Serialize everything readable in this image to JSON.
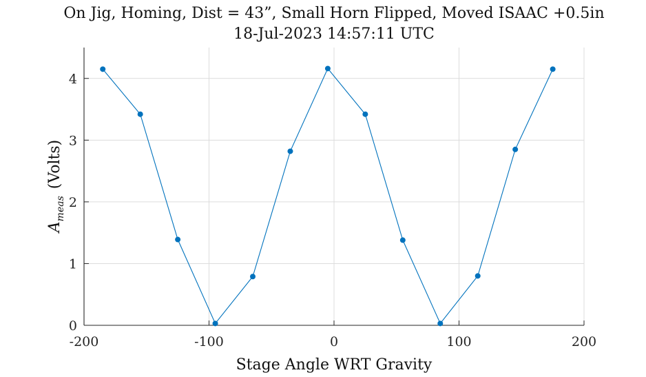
{
  "chart_data": {
    "type": "line",
    "title": "On Jig, Homing, Dist = 43”, Small Horn Flipped, Moved ISAAC +0.5in",
    "subtitle": "18-Jul-2023 14:57:11 UTC",
    "xlabel": "Stage Angle WRT Gravity",
    "ylabel_main": "A",
    "ylabel_sub": "meas",
    "ylabel_units": "(Volts)",
    "xlim": [
      -200,
      200
    ],
    "ylim": [
      0,
      4.5
    ],
    "xticks": [
      -200,
      -100,
      0,
      100,
      200
    ],
    "xtick_labels": [
      "-200",
      "-100",
      "0",
      "100",
      "200"
    ],
    "yticks": [
      0,
      1,
      2,
      3,
      4
    ],
    "ytick_labels": [
      "0",
      "1",
      "2",
      "3",
      "4"
    ],
    "grid": true,
    "color": "#0072BD",
    "series": [
      {
        "x": [
          -185,
          -155,
          -125,
          -95,
          -65,
          -35,
          -5,
          25,
          55,
          85,
          115,
          145,
          175
        ],
        "y": [
          4.15,
          3.42,
          1.39,
          0.03,
          0.79,
          2.82,
          4.16,
          3.42,
          1.38,
          0.03,
          0.8,
          2.85,
          4.15
        ]
      }
    ]
  }
}
